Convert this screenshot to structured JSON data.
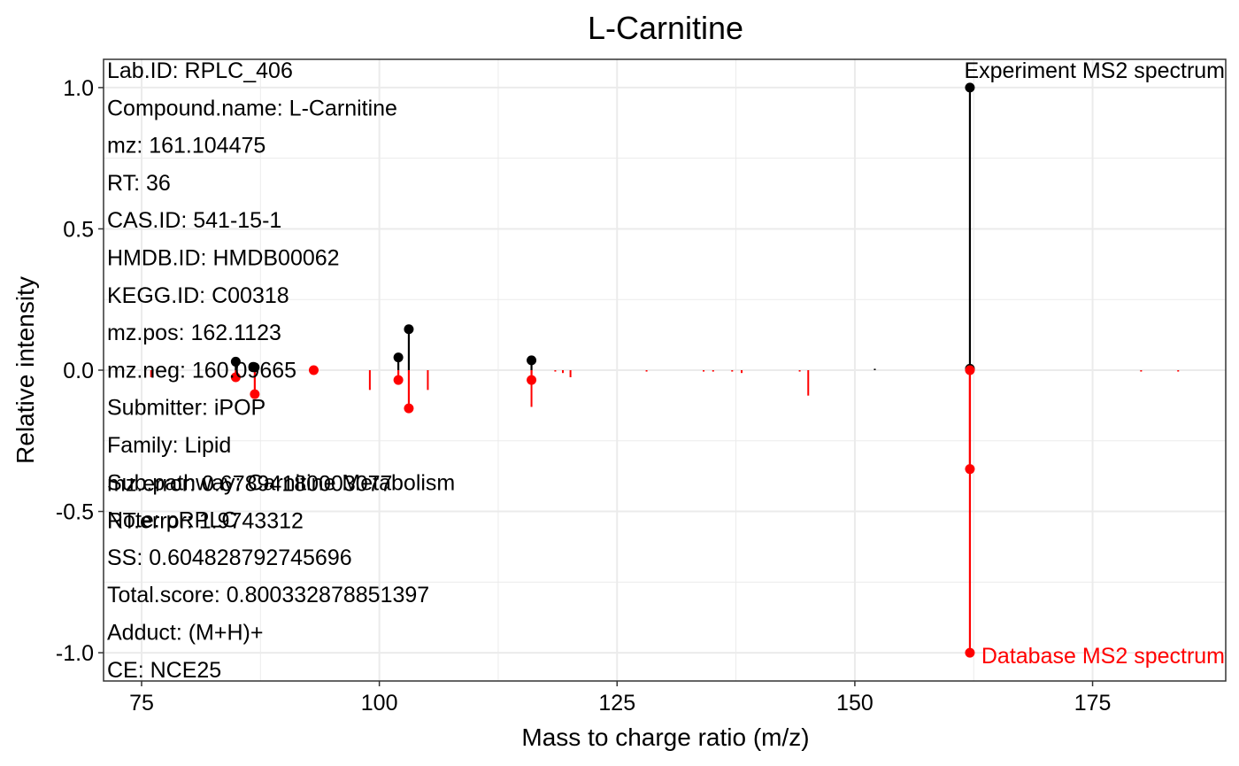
{
  "chart_data": {
    "type": "scatter",
    "title": "L-Carnitine",
    "xlabel": "Mass to charge ratio (m/z)",
    "ylabel": "Relative intensity",
    "xlim": [
      71,
      189
    ],
    "ylim": [
      -1.1,
      1.1
    ],
    "x_ticks": [
      75,
      100,
      125,
      150,
      175
    ],
    "y_ticks": [
      1.0,
      0.5,
      0.0,
      -0.5,
      -1.0
    ],
    "x_tick_labels": [
      "75",
      "100",
      "125",
      "150",
      "175"
    ],
    "y_tick_labels": [
      "1.0",
      "0.5",
      "0.0",
      "-0.5",
      "-1.0"
    ],
    "grid": true,
    "experiment_label": "Experiment MS2 spectrum",
    "database_label": "Database MS2 spectrum",
    "colors": {
      "experiment": "#000000",
      "database": "#ff0000",
      "panel_border": "#333333",
      "grid": "#ebebeb"
    },
    "series": [
      {
        "name": "Experiment MS2 spectrum",
        "color": "#000000",
        "points": [
          {
            "x": 84.9,
            "y": 0.03
          },
          {
            "x": 86.9,
            "y": 0.01
          },
          {
            "x": 102.0,
            "y": 0.045
          },
          {
            "x": 103.1,
            "y": 0.145
          },
          {
            "x": 116.0,
            "y": 0.035
          },
          {
            "x": 162.1,
            "y": 1.0
          },
          {
            "x": 162.1,
            "y": 0.005
          }
        ]
      },
      {
        "name": "Database MS2 spectrum",
        "color": "#ff0000",
        "points": [
          {
            "x": 84.9,
            "y": -0.025
          },
          {
            "x": 86.9,
            "y": -0.085
          },
          {
            "x": 93.1,
            "y": 0.0
          },
          {
            "x": 102.0,
            "y": -0.035
          },
          {
            "x": 103.1,
            "y": -0.135
          },
          {
            "x": 116.0,
            "y": -0.035
          },
          {
            "x": 162.1,
            "y": 0.0
          },
          {
            "x": 162.1,
            "y": -0.35
          },
          {
            "x": 162.1,
            "y": -1.0
          }
        ]
      }
    ],
    "unmatched_database_peaks": [
      {
        "x": 76.0,
        "y": -0.025
      },
      {
        "x": 99.0,
        "y": -0.07
      },
      {
        "x": 105.1,
        "y": -0.07
      },
      {
        "x": 116.0,
        "y": -0.13
      },
      {
        "x": 118.5,
        "y": -0.005
      },
      {
        "x": 119.3,
        "y": -0.01
      },
      {
        "x": 120.1,
        "y": -0.025
      },
      {
        "x": 128.1,
        "y": -0.005
      },
      {
        "x": 134.1,
        "y": -0.005
      },
      {
        "x": 135.1,
        "y": -0.005
      },
      {
        "x": 137.1,
        "y": -0.005
      },
      {
        "x": 138.1,
        "y": -0.01
      },
      {
        "x": 144.2,
        "y": -0.005
      },
      {
        "x": 145.1,
        "y": -0.09
      },
      {
        "x": 180.1,
        "y": -0.005
      },
      {
        "x": 184.0,
        "y": -0.005
      }
    ],
    "unmatched_experiment_peaks": [
      {
        "x": 152.1,
        "y": 0.005
      }
    ],
    "info_lines": [
      "Lab.ID: RPLC_406",
      "Compound.name: L-Carnitine",
      "mz: 161.104475",
      "RT: 36",
      "CAS.ID: 541-15-1",
      "HMDB.ID: HMDB00062",
      "KEGG.ID: C00318",
      "mz.pos: 162.1123",
      "mz.neg: 160.09665",
      "Submitter: iPOP",
      "Family: Lipid",
      "Sub.pathway: Carnitine Metabolism",
      "Note: pRPLC",
      "SS: 0.604828792745696",
      "Total.score: 0.800332878851397",
      "Adduct: (M+H)+",
      "CE: NCE25"
    ],
    "overlay_lines": [
      "mz.error: 0.67894180003077",
      "RT.error: 1.9743312"
    ]
  }
}
